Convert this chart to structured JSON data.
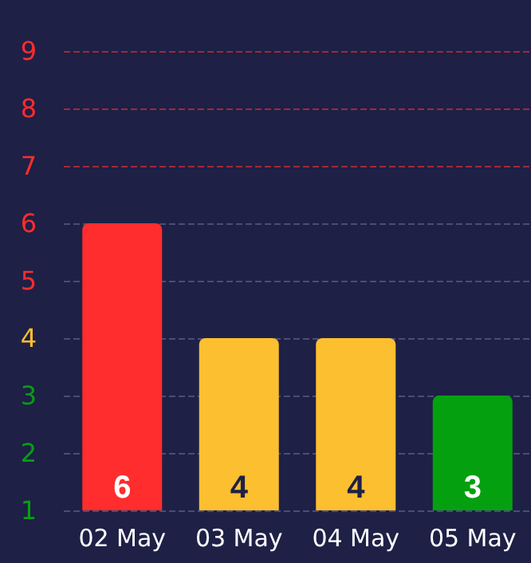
{
  "chart_data": {
    "type": "bar",
    "categories": [
      "02 May",
      "03 May",
      "04 May",
      "05 May"
    ],
    "values": [
      6,
      4,
      4,
      3
    ],
    "colors": [
      "#ff2d2d",
      "#fcbf2f",
      "#fcbf2f",
      "#05a010"
    ],
    "ylim": [
      1,
      9
    ],
    "yticks": [
      1,
      2,
      3,
      4,
      5,
      6,
      7,
      8,
      9
    ],
    "grid": "y",
    "data_labels": true
  }
}
